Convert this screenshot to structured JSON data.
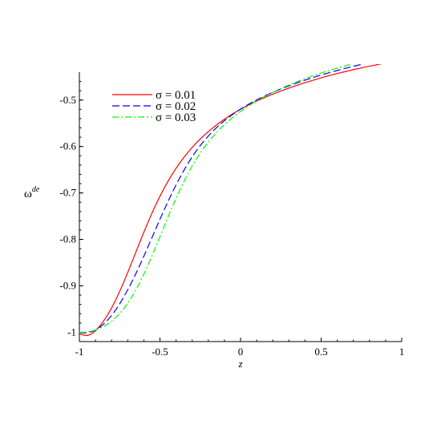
{
  "chart_data": {
    "type": "line",
    "title": "",
    "xlabel": "z",
    "ylabel_base": "ω",
    "ylabel_sup": "de",
    "xlim": [
      -1,
      1
    ],
    "ylim": [
      -1.02,
      -0.44
    ],
    "x_ticks": [
      -1,
      -0.5,
      0,
      0.5,
      1
    ],
    "x_tick_labels": [
      "-1",
      "-0.5",
      "0",
      "0.5",
      "1"
    ],
    "y_ticks": [
      -1,
      -0.9,
      -0.8,
      -0.7,
      -0.6,
      -0.5
    ],
    "y_tick_labels": [
      "-1",
      "-0.9",
      "-0.8",
      "-0.7",
      "-0.6",
      "-0.5"
    ],
    "grid": false,
    "legend_position": "top-left",
    "x": [
      -1,
      -0.975,
      -0.95,
      -0.925,
      -0.9,
      -0.875,
      -0.85,
      -0.825,
      -0.8,
      -0.775,
      -0.75,
      -0.725,
      -0.7,
      -0.675,
      -0.65,
      -0.625,
      -0.6,
      -0.575,
      -0.55,
      -0.525,
      -0.5,
      -0.475,
      -0.45,
      -0.425,
      -0.4,
      -0.375,
      -0.35,
      -0.325,
      -0.3,
      -0.275,
      -0.25,
      -0.225,
      -0.2,
      -0.175,
      -0.15,
      -0.125,
      -0.1,
      -0.075,
      -0.05,
      -0.025,
      0,
      0.025,
      0.05,
      0.075,
      0.1,
      0.125,
      0.15,
      0.175,
      0.2,
      0.225,
      0.25,
      0.275,
      0.3,
      0.325,
      0.35,
      0.375,
      0.4,
      0.425,
      0.45,
      0.475,
      0.5,
      0.525,
      0.55,
      0.575,
      0.6,
      0.625,
      0.65,
      0.675,
      0.7,
      0.725,
      0.75,
      0.775,
      0.8,
      0.825,
      0.85,
      0.875,
      0.9,
      0.925,
      0.95,
      0.975,
      1
    ],
    "series": [
      {
        "name": "σ = 0.01",
        "color": "#ff0000",
        "dash": "solid",
        "values": [
          -1.003,
          -1.006,
          -1.007,
          -1.0036,
          -0.9965,
          -0.9871,
          -0.9758,
          -0.9627,
          -0.9476,
          -0.9306,
          -0.912,
          -0.8921,
          -0.8712,
          -0.8496,
          -0.8278,
          -0.806,
          -0.7846,
          -0.7638,
          -0.7438,
          -0.7248,
          -0.707,
          -0.6904,
          -0.6749,
          -0.6604,
          -0.6469,
          -0.6344,
          -0.6228,
          -0.612,
          -0.6019,
          -0.5926,
          -0.5839,
          -0.5757,
          -0.568,
          -0.5607,
          -0.5539,
          -0.5474,
          -0.5413,
          -0.5355,
          -0.53,
          -0.5248,
          -0.5198,
          -0.5151,
          -0.5106,
          -0.5063,
          -0.5022,
          -0.4983,
          -0.4945,
          -0.4909,
          -0.4873,
          -0.4839,
          -0.4806,
          -0.4774,
          -0.4743,
          -0.4712,
          -0.4683,
          -0.4654,
          -0.4626,
          -0.4599,
          -0.4573,
          -0.4547,
          -0.4522,
          -0.4498,
          -0.4474,
          -0.4451,
          -0.4429,
          -0.4408,
          -0.4387,
          -0.4366,
          -0.4346,
          -0.4327,
          -0.4308,
          -0.4289,
          -0.4271,
          -0.4254,
          -0.4236,
          -0.422,
          -0.4203,
          -0.4187,
          -0.4171,
          -0.4156,
          -0.4141
        ]
      },
      {
        "name": "σ = 0.02",
        "color": "#0000ff",
        "dash": "dashed",
        "values": [
          -1.0005,
          -1.0012,
          -1.0008,
          -0.9988,
          -0.9951,
          -0.9896,
          -0.9825,
          -0.9738,
          -0.9636,
          -0.9519,
          -0.9388,
          -0.9243,
          -0.9087,
          -0.8919,
          -0.8741,
          -0.8555,
          -0.8363,
          -0.8166,
          -0.7966,
          -0.7766,
          -0.7567,
          -0.7372,
          -0.7183,
          -0.7,
          -0.6825,
          -0.666,
          -0.6504,
          -0.6358,
          -0.6222,
          -0.6097,
          -0.598,
          -0.5873,
          -0.5774,
          -0.5682,
          -0.5597,
          -0.5518,
          -0.5445,
          -0.5376,
          -0.5312,
          -0.5252,
          -0.5195,
          -0.5142,
          -0.5091,
          -0.5043,
          -0.4997,
          -0.4954,
          -0.4912,
          -0.4872,
          -0.4834,
          -0.4797,
          -0.4762,
          -0.4727,
          -0.4694,
          -0.4662,
          -0.4631,
          -0.4601,
          -0.4572,
          -0.4543,
          -0.4515,
          -0.4488,
          -0.4462,
          -0.4436,
          -0.4411,
          -0.4387,
          -0.4363,
          -0.434,
          -0.4317,
          -0.4295,
          -0.4274,
          -0.4253,
          -0.4233,
          -0.4213,
          -0.4193,
          -0.4174,
          -0.4155,
          -0.4137,
          -0.4119,
          -0.4101,
          -0.4084,
          -0.4067,
          -0.4051
        ]
      },
      {
        "name": "σ = 0.03",
        "color": "#00ff00",
        "dash": "dashdot",
        "values": [
          -1.0,
          -1.0,
          -0.9991,
          -0.9975,
          -0.9951,
          -0.9919,
          -0.9877,
          -0.9825,
          -0.9762,
          -0.9686,
          -0.9597,
          -0.9494,
          -0.9375,
          -0.9241,
          -0.9091,
          -0.8927,
          -0.8749,
          -0.8559,
          -0.836,
          -0.8153,
          -0.7942,
          -0.773,
          -0.7519,
          -0.7313,
          -0.7114,
          -0.6924,
          -0.6744,
          -0.6576,
          -0.642,
          -0.6276,
          -0.6142,
          -0.6019,
          -0.5905,
          -0.58,
          -0.5703,
          -0.5613,
          -0.5529,
          -0.5451,
          -0.5378,
          -0.5309,
          -0.5245,
          -0.5184,
          -0.5126,
          -0.5071,
          -0.5019,
          -0.497,
          -0.4923,
          -0.4877,
          -0.4834,
          -0.4792,
          -0.4752,
          -0.4714,
          -0.4677,
          -0.4641,
          -0.4606,
          -0.4572,
          -0.454,
          -0.4508,
          -0.4478,
          -0.4448,
          -0.4419,
          -0.4391,
          -0.4364,
          -0.4337,
          -0.4311,
          -0.4286,
          -0.4261,
          -0.4237,
          -0.4214,
          -0.4191,
          -0.4168,
          -0.4146,
          -0.4125,
          -0.4104,
          -0.4084,
          -0.4064,
          -0.4044,
          -0.4025,
          -0.4006,
          -0.3988,
          -0.397
        ]
      }
    ]
  }
}
